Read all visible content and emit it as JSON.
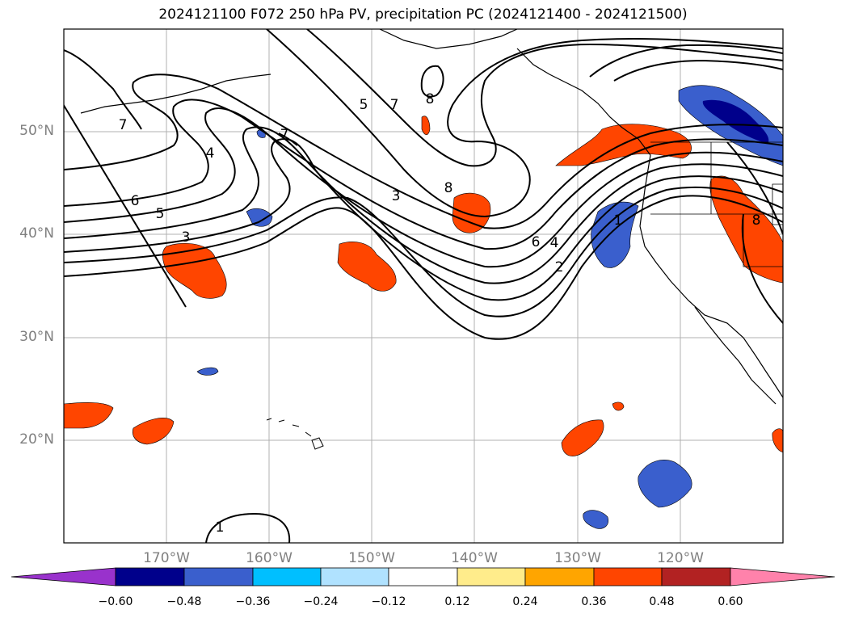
{
  "title": "2024121100 F072 250 hPa PV, precipitation PC (2024121400 - 2024121500)",
  "map": {
    "projection": "PlateCarree",
    "lon_range": [
      -180,
      -110
    ],
    "lat_range": [
      10,
      60
    ],
    "land_outline_color": "#000000",
    "grid_color": "#b0b0b0"
  },
  "lat_labels": [
    "50°N",
    "40°N",
    "30°N",
    "20°N"
  ],
  "lon_labels": [
    "170°W",
    "160°W",
    "150°W",
    "140°W",
    "130°W",
    "120°W"
  ],
  "pv_contour_labels": [
    "1",
    "2",
    "3",
    "4",
    "5",
    "6",
    "7",
    "8"
  ],
  "colorbar": {
    "tick_labels": [
      "−0.60",
      "−0.48",
      "−0.36",
      "−0.24",
      "−0.12",
      "0.12",
      "0.24",
      "0.36",
      "0.48",
      "0.60"
    ],
    "colors": [
      "#9932cc",
      "#00008b",
      "#3a5fcd",
      "#00bfff",
      "#b0e2ff",
      "#ffffff",
      "#ffec8b",
      "#ffa500",
      "#ff4500",
      "#b22222",
      "#ff82ab"
    ]
  }
}
